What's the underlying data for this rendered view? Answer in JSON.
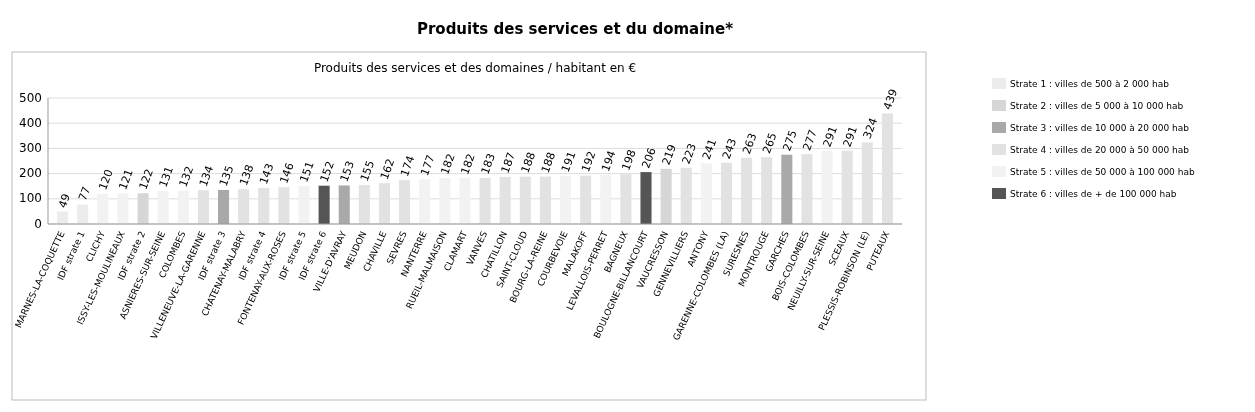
{
  "chart_data": {
    "type": "bar",
    "title": "Produits des services et du domaine*",
    "subtitle": "Produits des services et des domaines / habitant en €",
    "categories": [
      "MARNES-LA-COQUETTE",
      "IDF strate 1",
      "CLICHY",
      "ISSY-LES-MOULINEAUX",
      "IDF strate 2",
      "ASNIERES-SUR-SEINE",
      "COLOMBES",
      "VILLENEUVE-LA-GARENNE",
      "IDF strate 3",
      "CHATENAY-MALABRY",
      "IDF strate 4",
      "FONTENAY-AUX-ROSES",
      "IDF strate 5",
      "IDF strate 6",
      "VILLE-D'AVRAY",
      "MEUDON",
      "CHAVILLE",
      "SEVRES",
      "NANTERRE",
      "RUEIL-MALMAISON",
      "CLAMART",
      "VANVES",
      "CHATILLON",
      "SAINT-CLOUD",
      "BOURG-LA-REINE",
      "COURBEVOIE",
      "MALAKOFF",
      "LEVALLOIS-PERRET",
      "BAGNEUX",
      "BOULOGNE-BILLANCOURT",
      "VAUCRESSON",
      "GENNEVILLIERS",
      "ANTONY",
      "GARENNE-COLOMBES (LA)",
      "SURESNES",
      "MONTROUGE",
      "GARCHES",
      "BOIS-COLOMBES",
      "NEUILLY-SUR-SEINE",
      "SCEAUX",
      "PLESSIS-ROBINSON (LE)",
      "PUTEAUX"
    ],
    "stacked": true,
    "series": [
      {
        "name": "Strate 1 : villes de 500 à 2 000 hab",
        "color": "#ececec",
        "values": [
          49,
          77,
          null,
          null,
          null,
          null,
          null,
          null,
          null,
          null,
          null,
          null,
          null,
          null,
          null,
          null,
          null,
          null,
          null,
          null,
          null,
          null,
          null,
          null,
          null,
          null,
          null,
          null,
          null,
          null,
          null,
          null,
          null,
          null,
          null,
          null,
          null,
          null,
          null,
          null,
          null,
          null
        ]
      },
      {
        "name": "Strate 2 : villes de 5 000 à 10 000 hab",
        "color": "#d6d6d6",
        "values": [
          null,
          null,
          null,
          null,
          122,
          null,
          null,
          null,
          null,
          null,
          null,
          null,
          null,
          null,
          null,
          null,
          null,
          null,
          null,
          null,
          null,
          null,
          null,
          null,
          null,
          null,
          null,
          null,
          null,
          null,
          219,
          null,
          null,
          null,
          null,
          null,
          null,
          null,
          null,
          null,
          null,
          null
        ]
      },
      {
        "name": "Strate 3 : villes de 10 000 à 20 000 hab",
        "color": "#a9a9a9",
        "values": [
          null,
          null,
          null,
          null,
          null,
          null,
          null,
          null,
          135,
          null,
          null,
          null,
          null,
          null,
          153,
          null,
          null,
          null,
          null,
          null,
          null,
          null,
          null,
          null,
          null,
          null,
          null,
          null,
          null,
          null,
          null,
          null,
          null,
          null,
          null,
          null,
          275,
          null,
          null,
          null,
          null,
          null
        ]
      },
      {
        "name": "Strate 4 : villes de 20 000 à 50 000 hab",
        "color": "#e2e2e2",
        "values": [
          null,
          null,
          null,
          null,
          null,
          null,
          null,
          134,
          null,
          138,
          143,
          146,
          null,
          null,
          null,
          155,
          162,
          174,
          null,
          null,
          null,
          183,
          187,
          188,
          188,
          null,
          192,
          null,
          198,
          null,
          null,
          223,
          null,
          243,
          263,
          265,
          null,
          277,
          null,
          291,
          324,
          439
        ]
      },
      {
        "name": "Strate 5 : villes de 50 000 à 100 000 hab",
        "color": "#f2f2f2",
        "values": [
          null,
          null,
          120,
          121,
          null,
          131,
          132,
          null,
          null,
          null,
          null,
          null,
          151,
          null,
          null,
          null,
          null,
          null,
          177,
          182,
          182,
          null,
          null,
          null,
          null,
          191,
          null,
          194,
          null,
          null,
          null,
          null,
          241,
          null,
          null,
          null,
          null,
          null,
          291,
          null,
          null,
          null
        ]
      },
      {
        "name": "Strate 6 : villes de + de 100 000 hab",
        "color": "#555555",
        "values": [
          null,
          null,
          null,
          null,
          null,
          null,
          null,
          null,
          null,
          null,
          null,
          null,
          null,
          152,
          null,
          null,
          null,
          null,
          null,
          null,
          null,
          null,
          null,
          null,
          null,
          null,
          null,
          null,
          null,
          206,
          null,
          null,
          null,
          null,
          null,
          null,
          null,
          null,
          null,
          null,
          null,
          null
        ]
      }
    ],
    "ylim": [
      0,
      500
    ],
    "yticks": [
      0,
      100,
      200,
      300,
      400,
      500
    ],
    "grid": "y",
    "legend": "right",
    "data_labels": true
  }
}
